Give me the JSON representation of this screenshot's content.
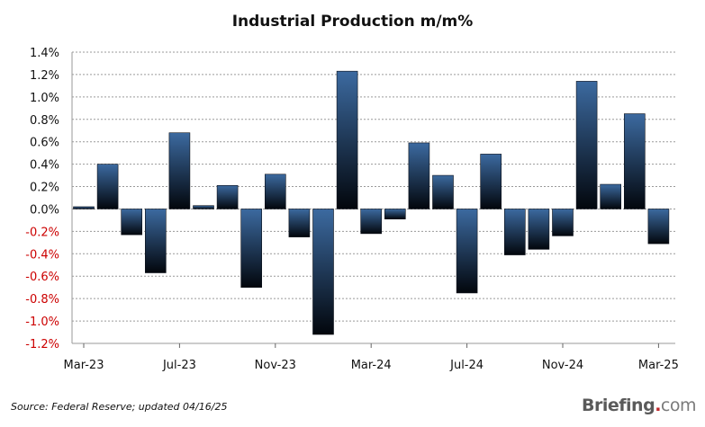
{
  "title": "Industrial Production m/m%",
  "source": "Source: Federal Reserve; updated 04/16/25",
  "brand": {
    "main": "Briefing",
    "dot": ".",
    "com": "com"
  },
  "colors": {
    "bar_top": "#3c6aa0",
    "bar_bottom": "#02060c",
    "grid": "#9a9a9a",
    "negative_label": "#cc0000",
    "positive_label": "#111111"
  },
  "chart_data": {
    "type": "bar",
    "title": "Industrial Production m/m%",
    "xlabel": "",
    "ylabel": "",
    "ylim": [
      -1.2,
      1.4
    ],
    "yticks": [
      1.4,
      1.2,
      1.0,
      0.8,
      0.6,
      0.4,
      0.2,
      0.0,
      -0.2,
      -0.4,
      -0.6,
      -0.8,
      -1.0,
      -1.2
    ],
    "ytick_labels": [
      "1.4%",
      "1.2%",
      "1.0%",
      "0.8%",
      "0.6%",
      "0.4%",
      "0.2%",
      "0.0%",
      "-0.2%",
      "-0.4%",
      "-0.6%",
      "-0.8%",
      "-1.0%",
      "-1.2%"
    ],
    "grid": true,
    "xtick_labels": [
      {
        "index": 0,
        "label": "Mar-23"
      },
      {
        "index": 4,
        "label": "Jul-23"
      },
      {
        "index": 8,
        "label": "Nov-23"
      },
      {
        "index": 12,
        "label": "Mar-24"
      },
      {
        "index": 16,
        "label": "Jul-24"
      },
      {
        "index": 20,
        "label": "Nov-24"
      },
      {
        "index": 24,
        "label": "Mar-25"
      }
    ],
    "categories": [
      "Mar-23",
      "Apr-23",
      "May-23",
      "Jun-23",
      "Jul-23",
      "Aug-23",
      "Sep-23",
      "Oct-23",
      "Nov-23",
      "Dec-23",
      "Jan-24",
      "Feb-24",
      "Mar-24",
      "Apr-24",
      "May-24",
      "Jun-24",
      "Jul-24",
      "Aug-24",
      "Sep-24",
      "Oct-24",
      "Nov-24",
      "Dec-24",
      "Jan-25",
      "Feb-25",
      "Mar-25"
    ],
    "values": [
      0.02,
      0.4,
      -0.23,
      -0.57,
      0.68,
      0.03,
      0.21,
      -0.7,
      0.31,
      -0.25,
      -1.12,
      1.23,
      -0.22,
      -0.09,
      0.59,
      0.3,
      -0.75,
      0.49,
      -0.41,
      -0.36,
      -0.24,
      1.14,
      0.22,
      0.85,
      -0.31
    ]
  }
}
